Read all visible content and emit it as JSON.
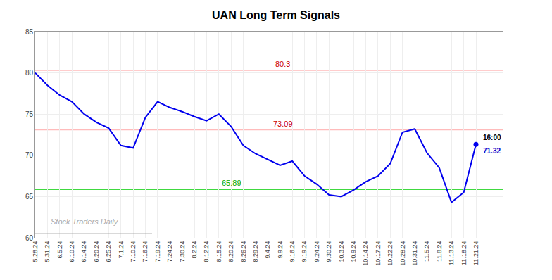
{
  "chart_data": {
    "type": "line",
    "title": "UAN Long Term Signals",
    "categories": [
      "5.28.24",
      "5.31.24",
      "6.5.24",
      "6.10.24",
      "6.14.24",
      "6.20.24",
      "6.25.24",
      "7.1.24",
      "7.10.24",
      "7.16.24",
      "7.19.24",
      "7.24.24",
      "7.30.24",
      "8.2.24",
      "8.12.24",
      "8.15.24",
      "8.20.24",
      "8.26.24",
      "8.29.24",
      "9.4.24",
      "9.9.24",
      "9.16.24",
      "9.19.24",
      "9.24.24",
      "9.30.24",
      "10.3.24",
      "10.9.24",
      "10.14.24",
      "10.17.24",
      "10.22.24",
      "10.28.24",
      "10.31.24",
      "11.5.24",
      "11.8.24",
      "11.13.24",
      "11.18.24",
      "11.21.24"
    ],
    "values": [
      80.0,
      78.5,
      77.3,
      76.5,
      75.0,
      74.0,
      73.3,
      71.2,
      70.9,
      74.6,
      76.5,
      75.8,
      75.3,
      74.7,
      74.2,
      75.0,
      73.5,
      71.2,
      70.2,
      69.5,
      68.8,
      69.3,
      67.5,
      66.5,
      65.2,
      65.0,
      65.8,
      66.8,
      67.5,
      69.0,
      72.8,
      73.2,
      70.3,
      68.5,
      64.3,
      65.5,
      71.32
    ],
    "color": "#0000ee",
    "ylim": [
      60,
      85
    ],
    "yticks": [
      60,
      65,
      70,
      75,
      80,
      85
    ],
    "grid": true,
    "reference_lines": [
      {
        "value": 80.3,
        "color": "#ffbbbb",
        "label": "80.3",
        "label_color": "#cc0000"
      },
      {
        "value": 73.09,
        "color": "#ffbbbb",
        "label": "73.09",
        "label_color": "#cc0000"
      },
      {
        "value": 65.89,
        "color": "#00cc00",
        "label": "65.89",
        "label_color": "#00aa00"
      }
    ],
    "end_label": "16:00",
    "end_value_label": "71.32",
    "end_value_color": "#0000cc",
    "watermark": "Stock Traders Daily",
    "watermark_line": 60.5
  }
}
